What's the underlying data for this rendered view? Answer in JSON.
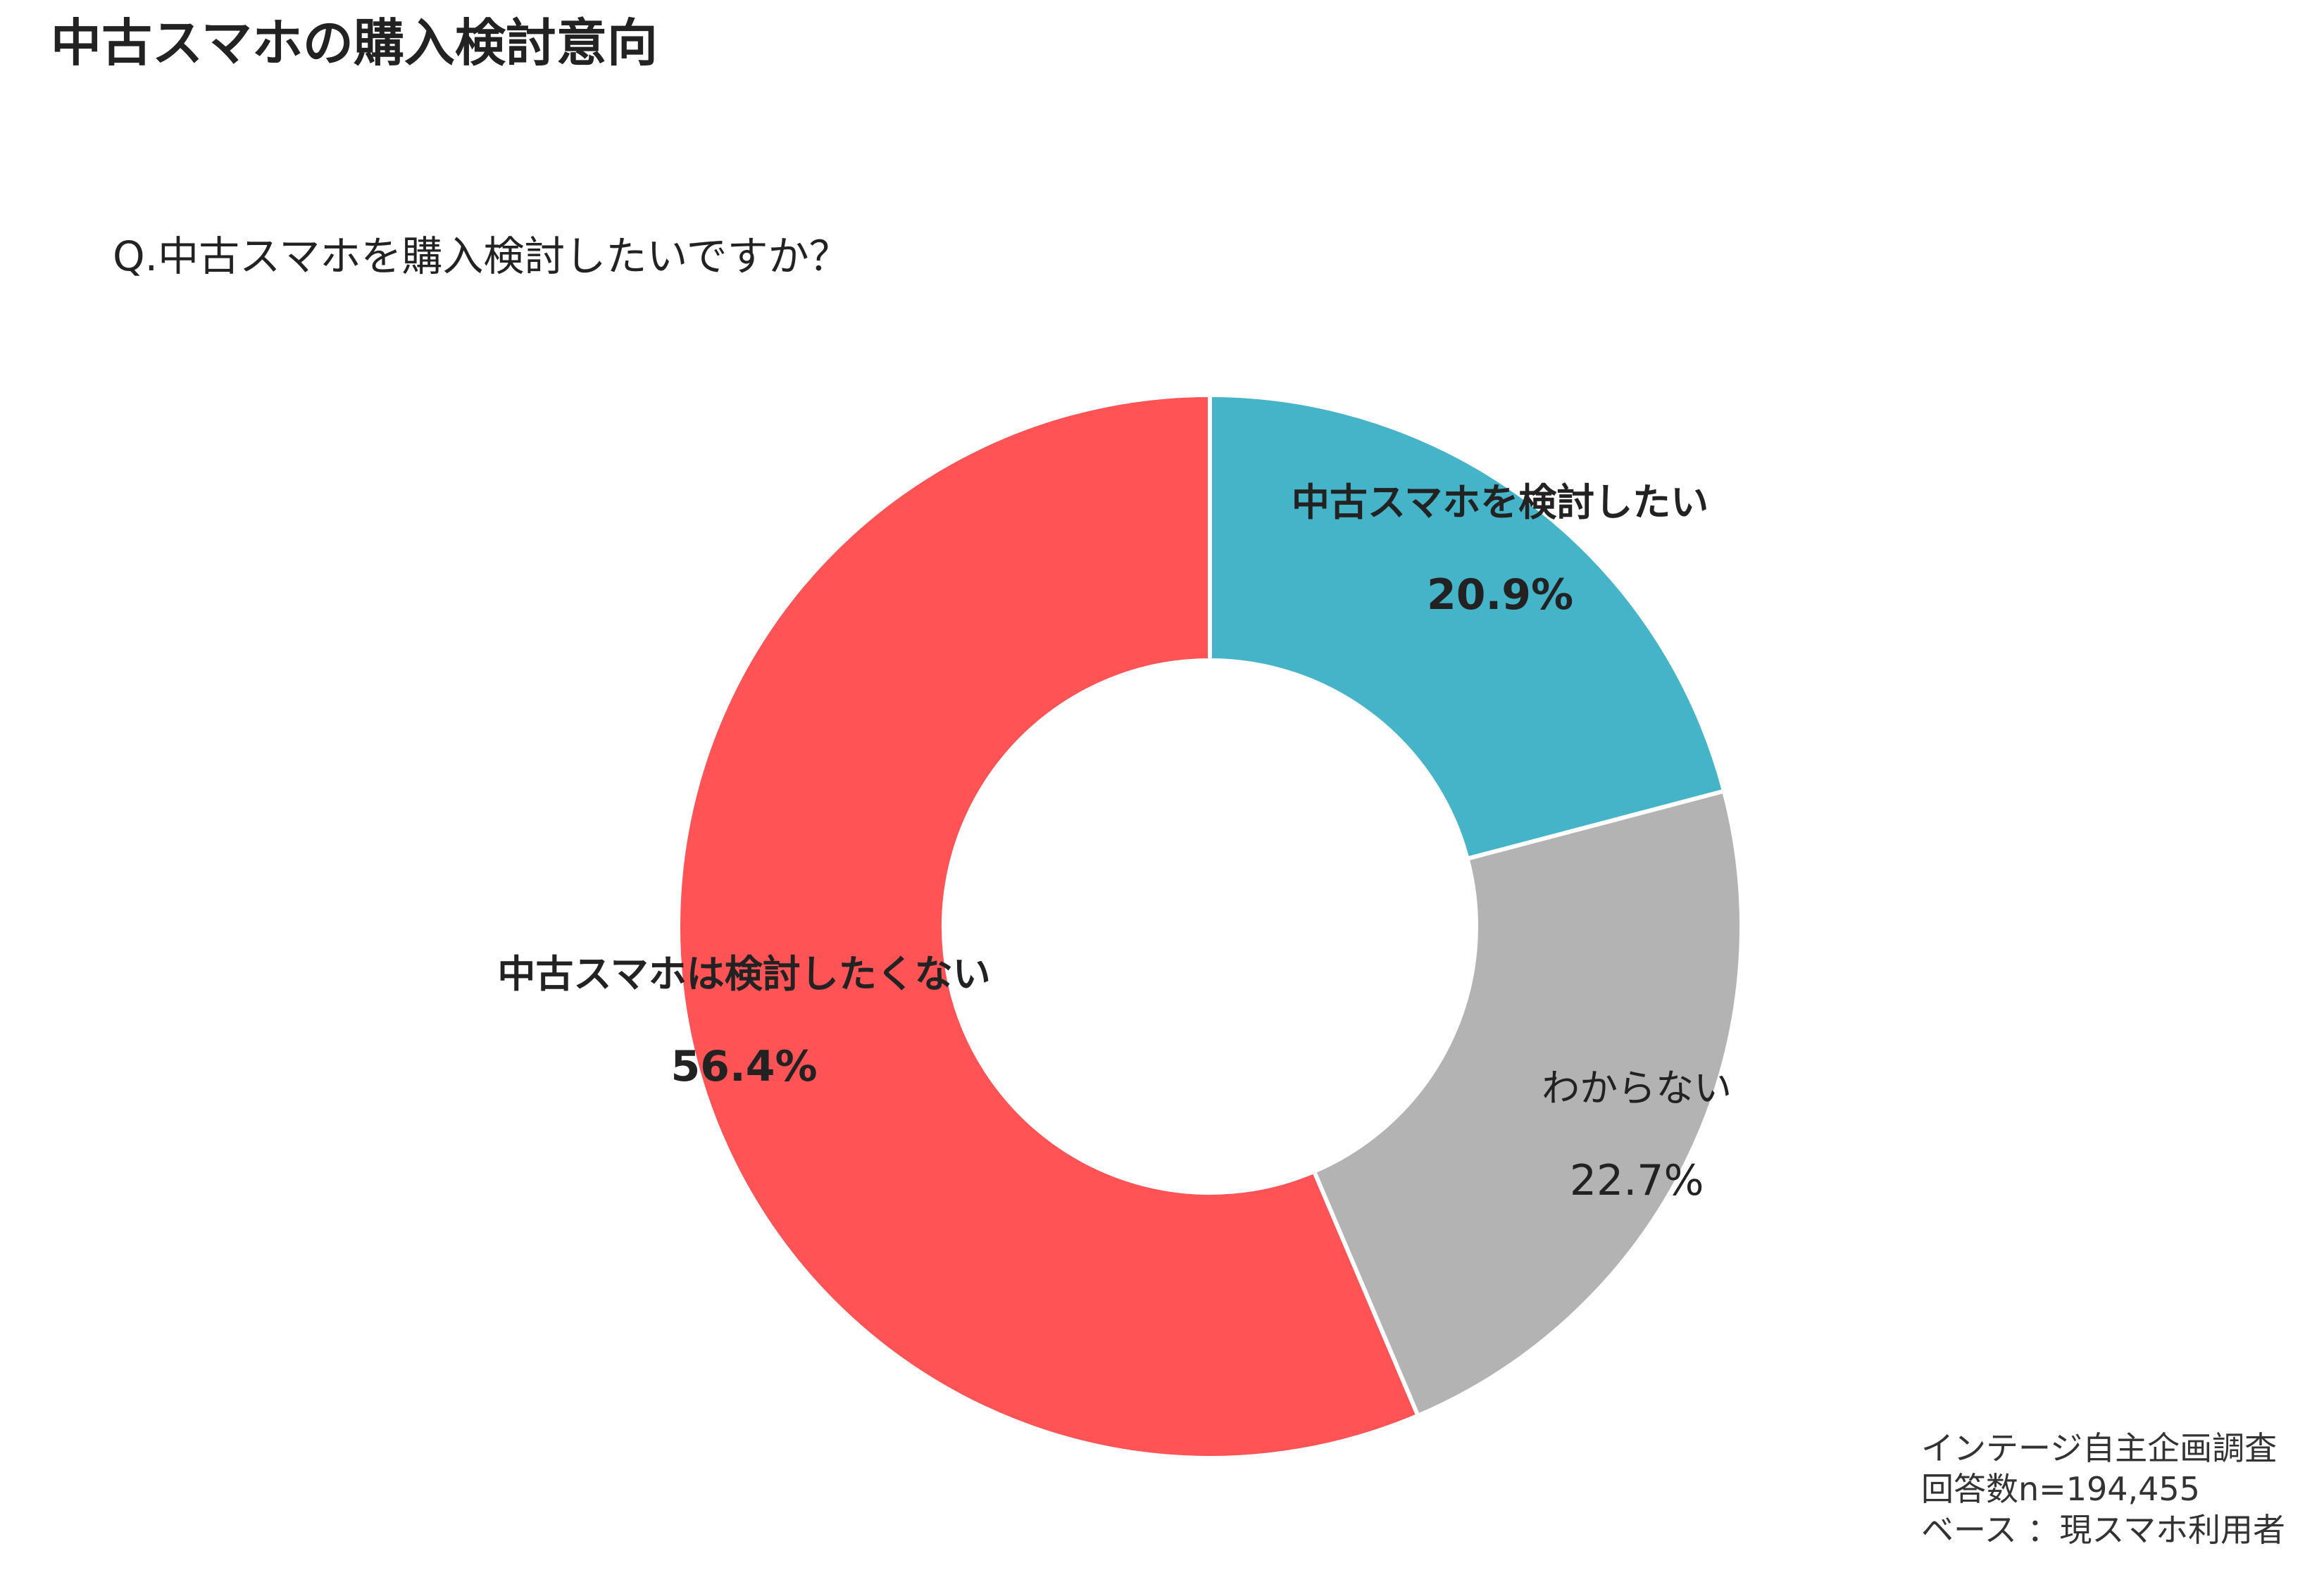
{
  "title": "中古スマホの購入検討意向",
  "question": "Q.中古スマホを購入検討したいですか？",
  "footnote": {
    "line1": "インテージ自主企画調査",
    "line2": "回答数n=194,455",
    "line3": "ベース ：現スマホ利用者"
  },
  "chart_data": {
    "type": "pie",
    "style": "donut",
    "direction": "clockwise",
    "start": "12 o'clock",
    "unit": "%",
    "slices": [
      {
        "label": "中古スマホを検討したい",
        "value": 20.9,
        "value_label": "20.9%",
        "color": "#45B3C8",
        "bold": true
      },
      {
        "label": "わからない",
        "value": 22.7,
        "value_label": "22.7%",
        "color": "#B3B3B3",
        "bold": false
      },
      {
        "label": "中古スマホは検討したくない",
        "value": 56.4,
        "value_label": "56.4%",
        "color": "#FF5356",
        "bold": true
      }
    ]
  }
}
